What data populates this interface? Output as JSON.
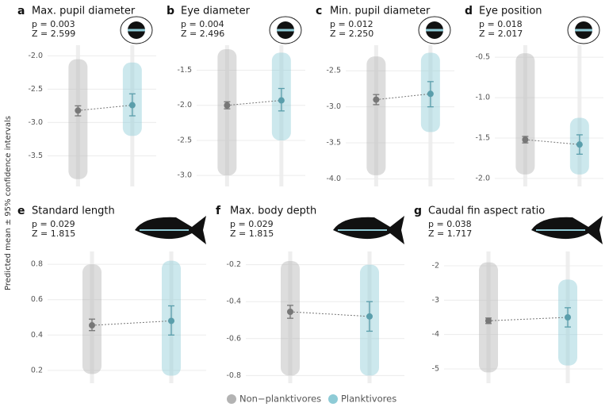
{
  "y_label": "Predicted mean ± 95% confidence intervals",
  "groups": [
    {
      "name": "Non−planktivores",
      "color": "#b3b3b3"
    },
    {
      "name": "Planktivores",
      "color": "#8ecbd6"
    }
  ],
  "chart_data": [
    {
      "type": "mean-ci",
      "letter": "a",
      "title": "Max. pupil diameter",
      "p": "p = 0.003",
      "z": "Z = 2.599",
      "ylim": [
        -3.9,
        -1.9
      ],
      "yticks": [
        -3.5,
        {
          "value": -3,
          "label": "-3.0"
        },
        -2.5,
        {
          "value": -2,
          "label": "-2.0"
        }
      ],
      "series": [
        {
          "mean": -2.82,
          "ci": [
            -2.9,
            -2.75
          ],
          "range": [
            -3.85,
            -2.05
          ]
        },
        {
          "mean": -2.74,
          "ci": [
            -2.9,
            -2.57
          ],
          "range": [
            -3.2,
            -2.1
          ]
        }
      ]
    },
    {
      "type": "mean-ci",
      "letter": "b",
      "title": "Eye diameter",
      "p": "p = 0.004",
      "z": "Z = 2.496",
      "ylim": [
        -3.1,
        -1.2
      ],
      "yticks": [
        {
          "value": -3,
          "label": "-3.0"
        },
        -2.5,
        {
          "value": -2,
          "label": "-2.0"
        },
        -1.5
      ],
      "series": [
        {
          "mean": -2.0,
          "ci": [
            -2.05,
            -1.95
          ],
          "range": [
            -3.0,
            -1.2
          ]
        },
        {
          "mean": -1.93,
          "ci": [
            -2.08,
            -1.76
          ],
          "range": [
            -2.5,
            -1.25
          ]
        }
      ]
    },
    {
      "type": "mean-ci",
      "letter": "c",
      "title": "Min. pupil diameter",
      "p": "p = 0.012",
      "z": "Z = 2.250",
      "ylim": [
        -4.05,
        -2.2
      ],
      "yticks": [
        {
          "value": -4,
          "label": "-4.0"
        },
        -3.5,
        {
          "value": -3,
          "label": "-3.0"
        },
        -2.5
      ],
      "series": [
        {
          "mean": -2.9,
          "ci": [
            -2.97,
            -2.83
          ],
          "range": [
            -3.95,
            -2.3
          ]
        },
        {
          "mean": -2.82,
          "ci": [
            -3.0,
            -2.65
          ],
          "range": [
            -3.35,
            -2.25
          ]
        }
      ]
    },
    {
      "type": "mean-ci",
      "letter": "d",
      "title": "Eye position",
      "p": "p = 0.018",
      "z": "Z = 2.017",
      "ylim": [
        -2.05,
        -0.4
      ],
      "yticks": [
        {
          "value": -2,
          "label": "-2.0"
        },
        -1.5,
        {
          "value": -1,
          "label": "-1.0"
        },
        -0.5
      ],
      "series": [
        {
          "mean": -1.52,
          "ci": [
            -1.56,
            -1.48
          ],
          "range": [
            -1.95,
            -0.45
          ]
        },
        {
          "mean": -1.58,
          "ci": [
            -1.7,
            -1.46
          ],
          "range": [
            -1.95,
            -1.25
          ]
        }
      ]
    },
    {
      "type": "mean-ci",
      "letter": "e",
      "title": "Standard length",
      "p": "p = 0.029",
      "z": "Z = 1.815",
      "ylim": [
        0.15,
        0.85
      ],
      "yticks": [
        0.2,
        0.4,
        0.6,
        0.8
      ],
      "series": [
        {
          "mean": 0.455,
          "ci": [
            0.425,
            0.49
          ],
          "range": [
            0.18,
            0.8
          ]
        },
        {
          "mean": 0.48,
          "ci": [
            0.4,
            0.565
          ],
          "range": [
            0.17,
            0.82
          ]
        }
      ]
    },
    {
      "type": "mean-ci",
      "letter": "f",
      "title": "Max. body depth",
      "p": "p = 0.029",
      "z": "Z = 1.815",
      "ylim": [
        -0.82,
        -0.15
      ],
      "yticks": [
        -0.8,
        -0.6,
        -0.4,
        -0.2
      ],
      "series": [
        {
          "mean": -0.455,
          "ci": [
            -0.49,
            -0.42
          ],
          "range": [
            -0.8,
            -0.18
          ]
        },
        {
          "mean": -0.48,
          "ci": [
            -0.56,
            -0.4
          ],
          "range": [
            -0.8,
            -0.2
          ]
        }
      ]
    },
    {
      "type": "mean-ci",
      "letter": "g",
      "title": "Caudal fin aspect ratio",
      "p": "p = 0.038",
      "z": "Z = 1.717",
      "ylim": [
        -5.3,
        -1.7
      ],
      "yticks": [
        -5,
        -4,
        -3,
        -2
      ],
      "series": [
        {
          "mean": -3.6,
          "ci": [
            -3.68,
            -3.52
          ],
          "range": [
            -5.1,
            -1.9
          ]
        },
        {
          "mean": -3.5,
          "ci": [
            -3.78,
            -3.22
          ],
          "range": [
            -4.9,
            -2.4
          ]
        }
      ]
    }
  ]
}
